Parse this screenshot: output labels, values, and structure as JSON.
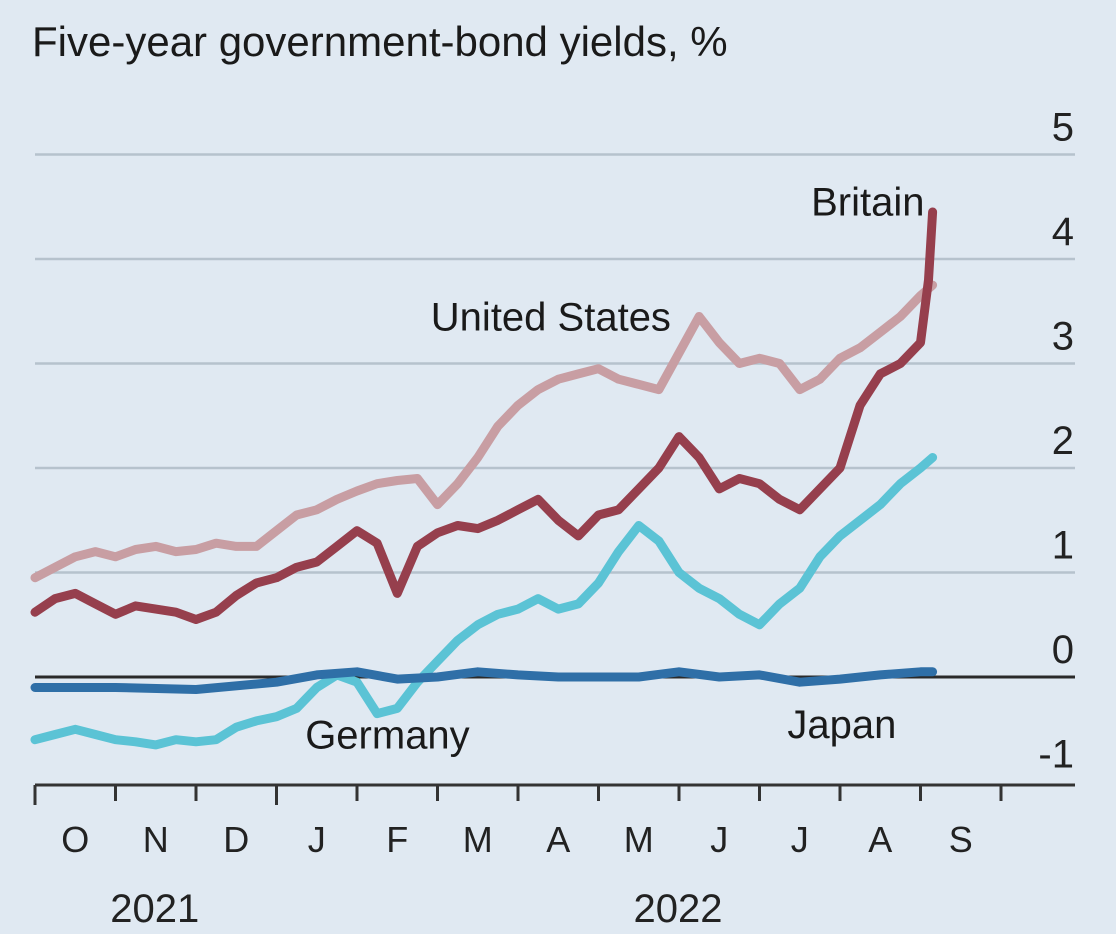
{
  "chart_data": {
    "type": "line",
    "title": "Five-year government-bond yields, %",
    "xlabel": "",
    "ylabel": "",
    "ylim": [
      -1,
      5
    ],
    "yticks": [
      -1,
      0,
      1,
      2,
      3,
      4,
      5
    ],
    "ytick_labels": [
      "-1",
      "0",
      "1",
      "2",
      "3",
      "4",
      "5"
    ],
    "grid": true,
    "months": [
      {
        "label": "O",
        "index": 0
      },
      {
        "label": "N",
        "index": 1
      },
      {
        "label": "D",
        "index": 2
      },
      {
        "label": "J",
        "index": 3
      },
      {
        "label": "F",
        "index": 4
      },
      {
        "label": "M",
        "index": 5
      },
      {
        "label": "A",
        "index": 6
      },
      {
        "label": "M",
        "index": 7
      },
      {
        "label": "J",
        "index": 8
      },
      {
        "label": "J",
        "index": 9
      },
      {
        "label": "A",
        "index": 10
      },
      {
        "label": "S",
        "index": 11
      }
    ],
    "years": [
      {
        "label": "2021",
        "center_month": 1.0
      },
      {
        "label": "2022",
        "center_month": 7.5
      }
    ],
    "series": [
      {
        "name": "United States",
        "color": "#c89ea3",
        "label_anchor": [
          7.9,
          3.45
        ],
        "points": [
          [
            0.0,
            0.95
          ],
          [
            0.25,
            1.05
          ],
          [
            0.5,
            1.15
          ],
          [
            0.75,
            1.2
          ],
          [
            1.0,
            1.15
          ],
          [
            1.25,
            1.22
          ],
          [
            1.5,
            1.25
          ],
          [
            1.75,
            1.2
          ],
          [
            2.0,
            1.22
          ],
          [
            2.25,
            1.28
          ],
          [
            2.5,
            1.25
          ],
          [
            2.75,
            1.25
          ],
          [
            3.0,
            1.4
          ],
          [
            3.25,
            1.55
          ],
          [
            3.5,
            1.6
          ],
          [
            3.75,
            1.7
          ],
          [
            4.0,
            1.78
          ],
          [
            4.25,
            1.85
          ],
          [
            4.5,
            1.88
          ],
          [
            4.75,
            1.9
          ],
          [
            5.0,
            1.65
          ],
          [
            5.25,
            1.85
          ],
          [
            5.5,
            2.1
          ],
          [
            5.75,
            2.4
          ],
          [
            6.0,
            2.6
          ],
          [
            6.25,
            2.75
          ],
          [
            6.5,
            2.85
          ],
          [
            6.75,
            2.9
          ],
          [
            7.0,
            2.95
          ],
          [
            7.25,
            2.85
          ],
          [
            7.5,
            2.8
          ],
          [
            7.75,
            2.75
          ],
          [
            8.0,
            3.1
          ],
          [
            8.25,
            3.45
          ],
          [
            8.5,
            3.2
          ],
          [
            8.75,
            3.0
          ],
          [
            9.0,
            3.05
          ],
          [
            9.25,
            3.0
          ],
          [
            9.5,
            2.75
          ],
          [
            9.75,
            2.85
          ],
          [
            10.0,
            3.05
          ],
          [
            10.25,
            3.15
          ],
          [
            10.5,
            3.3
          ],
          [
            10.75,
            3.45
          ],
          [
            11.0,
            3.65
          ],
          [
            11.15,
            3.75
          ]
        ]
      },
      {
        "name": "Britain",
        "color": "#963f4d",
        "label_anchor": [
          11.05,
          4.55
        ],
        "points": [
          [
            0.0,
            0.62
          ],
          [
            0.25,
            0.75
          ],
          [
            0.5,
            0.8
          ],
          [
            0.75,
            0.7
          ],
          [
            1.0,
            0.6
          ],
          [
            1.25,
            0.68
          ],
          [
            1.5,
            0.65
          ],
          [
            1.75,
            0.62
          ],
          [
            2.0,
            0.55
          ],
          [
            2.25,
            0.62
          ],
          [
            2.5,
            0.78
          ],
          [
            2.75,
            0.9
          ],
          [
            3.0,
            0.95
          ],
          [
            3.25,
            1.05
          ],
          [
            3.5,
            1.1
          ],
          [
            3.75,
            1.25
          ],
          [
            4.0,
            1.4
          ],
          [
            4.25,
            1.28
          ],
          [
            4.5,
            0.8
          ],
          [
            4.75,
            1.25
          ],
          [
            5.0,
            1.38
          ],
          [
            5.25,
            1.45
          ],
          [
            5.5,
            1.42
          ],
          [
            5.75,
            1.5
          ],
          [
            6.0,
            1.6
          ],
          [
            6.25,
            1.7
          ],
          [
            6.5,
            1.5
          ],
          [
            6.75,
            1.35
          ],
          [
            7.0,
            1.55
          ],
          [
            7.25,
            1.6
          ],
          [
            7.5,
            1.8
          ],
          [
            7.75,
            2.0
          ],
          [
            8.0,
            2.3
          ],
          [
            8.25,
            2.1
          ],
          [
            8.5,
            1.8
          ],
          [
            8.75,
            1.9
          ],
          [
            9.0,
            1.85
          ],
          [
            9.25,
            1.7
          ],
          [
            9.5,
            1.6
          ],
          [
            9.75,
            1.8
          ],
          [
            10.0,
            2.0
          ],
          [
            10.25,
            2.6
          ],
          [
            10.5,
            2.9
          ],
          [
            10.75,
            3.0
          ],
          [
            11.0,
            3.2
          ],
          [
            11.1,
            3.8
          ],
          [
            11.15,
            4.45
          ]
        ]
      },
      {
        "name": "Germany",
        "color": "#5bc3d5",
        "label_anchor": [
          5.4,
          -0.55
        ],
        "points": [
          [
            0.0,
            -0.6
          ],
          [
            0.25,
            -0.55
          ],
          [
            0.5,
            -0.5
          ],
          [
            0.75,
            -0.55
          ],
          [
            1.0,
            -0.6
          ],
          [
            1.25,
            -0.62
          ],
          [
            1.5,
            -0.65
          ],
          [
            1.75,
            -0.6
          ],
          [
            2.0,
            -0.62
          ],
          [
            2.25,
            -0.6
          ],
          [
            2.5,
            -0.48
          ],
          [
            2.75,
            -0.42
          ],
          [
            3.0,
            -0.38
          ],
          [
            3.25,
            -0.3
          ],
          [
            3.5,
            -0.1
          ],
          [
            3.75,
            0.02
          ],
          [
            4.0,
            -0.05
          ],
          [
            4.25,
            -0.35
          ],
          [
            4.5,
            -0.3
          ],
          [
            4.75,
            -0.05
          ],
          [
            5.0,
            0.15
          ],
          [
            5.25,
            0.35
          ],
          [
            5.5,
            0.5
          ],
          [
            5.75,
            0.6
          ],
          [
            6.0,
            0.65
          ],
          [
            6.25,
            0.75
          ],
          [
            6.5,
            0.65
          ],
          [
            6.75,
            0.7
          ],
          [
            7.0,
            0.9
          ],
          [
            7.25,
            1.2
          ],
          [
            7.5,
            1.45
          ],
          [
            7.75,
            1.3
          ],
          [
            8.0,
            1.0
          ],
          [
            8.25,
            0.85
          ],
          [
            8.5,
            0.75
          ],
          [
            8.75,
            0.6
          ],
          [
            9.0,
            0.5
          ],
          [
            9.25,
            0.7
          ],
          [
            9.5,
            0.85
          ],
          [
            9.75,
            1.15
          ],
          [
            10.0,
            1.35
          ],
          [
            10.25,
            1.5
          ],
          [
            10.5,
            1.65
          ],
          [
            10.75,
            1.85
          ],
          [
            11.0,
            2.0
          ],
          [
            11.15,
            2.1
          ]
        ]
      },
      {
        "name": "Japan",
        "color": "#2f6fa7",
        "label_anchor": [
          10.7,
          -0.45
        ],
        "points": [
          [
            0.0,
            -0.1
          ],
          [
            1.0,
            -0.1
          ],
          [
            2.0,
            -0.12
          ],
          [
            3.0,
            -0.05
          ],
          [
            3.5,
            0.02
          ],
          [
            4.0,
            0.05
          ],
          [
            4.5,
            -0.02
          ],
          [
            5.0,
            0.0
          ],
          [
            5.5,
            0.05
          ],
          [
            6.0,
            0.02
          ],
          [
            6.5,
            0.0
          ],
          [
            7.0,
            0.0
          ],
          [
            7.5,
            0.0
          ],
          [
            8.0,
            0.05
          ],
          [
            8.5,
            0.0
          ],
          [
            9.0,
            0.02
          ],
          [
            9.5,
            -0.05
          ],
          [
            10.0,
            -0.02
          ],
          [
            10.5,
            0.02
          ],
          [
            11.0,
            0.05
          ],
          [
            11.15,
            0.05
          ]
        ]
      }
    ]
  }
}
